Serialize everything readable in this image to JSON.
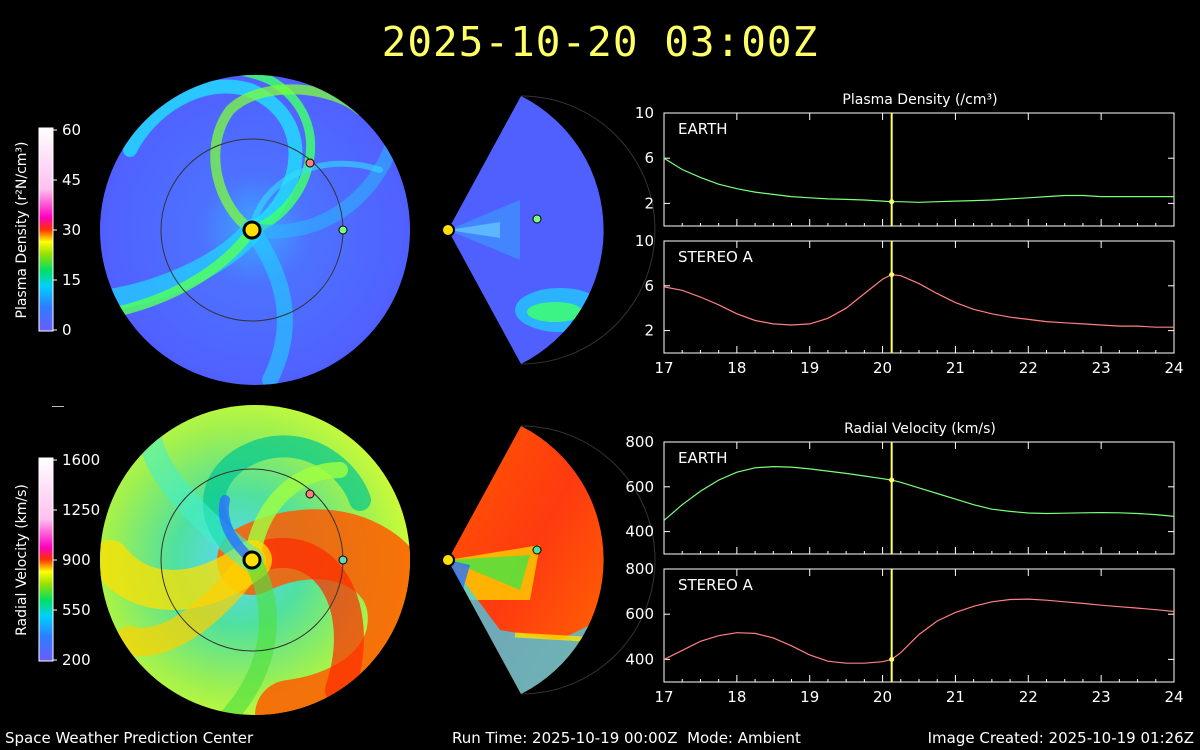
{
  "header": {
    "timestamp": "2025-10-20 03:00Z"
  },
  "footer": {
    "org": "Space Weather Prediction Center",
    "run_time": "Run Time: 2025-10-19 00:00Z",
    "mode": "Mode: Ambient",
    "image_created": "Image Created: 2025-10-19 01:26Z"
  },
  "colorbars": {
    "density": {
      "label": "Plasma Density (r²N/cm³)",
      "ticks": [
        "60",
        "45",
        "30",
        "15",
        "0"
      ]
    },
    "velocity": {
      "label": "Radial Velocity (km/s)",
      "ticks": [
        "1600",
        "1250",
        "900",
        "550",
        "200"
      ]
    }
  },
  "colors": {
    "title": "#ffff66",
    "earth": "#7cff7c",
    "stereo_a": "#ff7f7f",
    "marker_line": "#ffff66",
    "sun": "#ffe000"
  },
  "chart_data": [
    {
      "type": "line",
      "title": "Plasma Density (/cm³)",
      "x": [
        17,
        17.25,
        17.5,
        17.75,
        18,
        18.25,
        18.5,
        18.75,
        19,
        19.25,
        19.5,
        19.75,
        20,
        20.125,
        20.25,
        20.5,
        20.75,
        21,
        21.25,
        21.5,
        21.75,
        22,
        22.25,
        22.5,
        22.75,
        23,
        23.25,
        23.5,
        23.75,
        24
      ],
      "xticks": [
        "17",
        "18",
        "19",
        "20",
        "21",
        "22",
        "23",
        "24"
      ],
      "xlim": [
        17,
        24
      ],
      "current_x": 20.125,
      "panels": [
        {
          "label": "EARTH",
          "yticks": [
            "10",
            "6",
            "2"
          ],
          "ylim": [
            0,
            10
          ],
          "values": [
            6.0,
            5.0,
            4.3,
            3.7,
            3.3,
            3.0,
            2.8,
            2.6,
            2.5,
            2.4,
            2.35,
            2.3,
            2.2,
            2.15,
            2.15,
            2.1,
            2.15,
            2.2,
            2.25,
            2.3,
            2.4,
            2.5,
            2.6,
            2.7,
            2.7,
            2.6,
            2.6,
            2.6,
            2.6,
            2.6
          ]
        },
        {
          "label": "STEREO A",
          "yticks": [
            "10",
            "6",
            "2"
          ],
          "ylim": [
            0,
            10
          ],
          "values": [
            5.9,
            5.6,
            5.0,
            4.3,
            3.5,
            2.9,
            2.6,
            2.5,
            2.6,
            3.1,
            4.0,
            5.3,
            6.6,
            7.0,
            6.9,
            6.2,
            5.3,
            4.5,
            3.9,
            3.5,
            3.2,
            3.0,
            2.8,
            2.7,
            2.6,
            2.5,
            2.4,
            2.4,
            2.3,
            2.3
          ]
        }
      ]
    },
    {
      "type": "line",
      "title": "Radial Velocity (km/s)",
      "x": [
        17,
        17.25,
        17.5,
        17.75,
        18,
        18.25,
        18.5,
        18.75,
        19,
        19.25,
        19.5,
        19.75,
        20,
        20.125,
        20.25,
        20.5,
        20.75,
        21,
        21.25,
        21.5,
        21.75,
        22,
        22.25,
        22.5,
        22.75,
        23,
        23.25,
        23.5,
        23.75,
        24
      ],
      "xticks": [
        "17",
        "18",
        "19",
        "20",
        "21",
        "22",
        "23",
        "24"
      ],
      "xlim": [
        17,
        24
      ],
      "current_x": 20.125,
      "panels": [
        {
          "label": "EARTH",
          "yticks": [
            "800",
            "600",
            "400"
          ],
          "ylim": [
            300,
            800
          ],
          "values": [
            450,
            520,
            580,
            630,
            665,
            685,
            690,
            688,
            680,
            670,
            660,
            648,
            636,
            630,
            620,
            595,
            570,
            545,
            520,
            500,
            490,
            483,
            481,
            482,
            484,
            485,
            484,
            481,
            476,
            468
          ]
        },
        {
          "label": "STEREO A",
          "yticks": [
            "800",
            "600",
            "400"
          ],
          "ylim": [
            300,
            800
          ],
          "values": [
            400,
            440,
            480,
            505,
            518,
            515,
            495,
            460,
            420,
            392,
            383,
            383,
            390,
            400,
            430,
            510,
            570,
            608,
            635,
            655,
            665,
            667,
            662,
            655,
            648,
            640,
            633,
            627,
            620,
            612
          ]
        }
      ]
    }
  ]
}
